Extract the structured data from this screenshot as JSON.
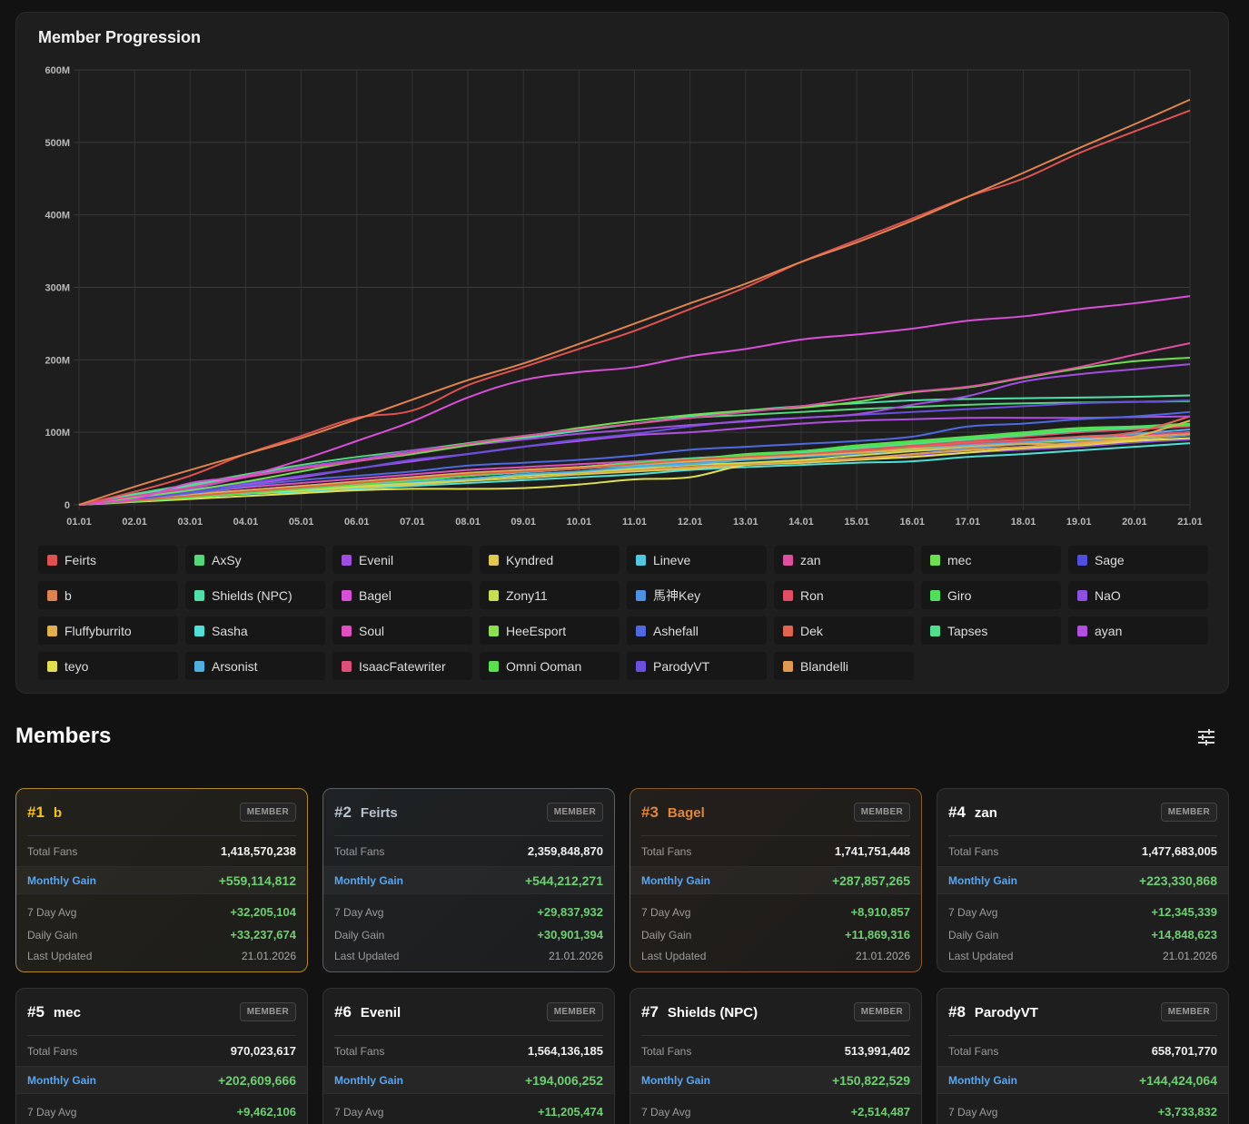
{
  "chart_card": {
    "title": "Member Progression"
  },
  "chart_data": {
    "type": "line",
    "title": "Member Progression",
    "xlabel": "",
    "ylabel": "",
    "x": [
      "01.01",
      "02.01",
      "03.01",
      "04.01",
      "05.01",
      "06.01",
      "07.01",
      "08.01",
      "09.01",
      "10.01",
      "11.01",
      "12.01",
      "13.01",
      "14.01",
      "15.01",
      "16.01",
      "17.01",
      "18.01",
      "19.01",
      "20.01",
      "21.01"
    ],
    "ylim": [
      0,
      600000000
    ],
    "yticks": [
      0,
      100000000,
      200000000,
      300000000,
      400000000,
      500000000,
      600000000
    ],
    "ytick_labels": [
      "0",
      "100M",
      "200M",
      "300M",
      "400M",
      "500M",
      "600M"
    ],
    "grid": true,
    "legend_position": "bottom",
    "series": [
      {
        "name": "Feirts",
        "color": "#e05252",
        "values": [
          0,
          18,
          40,
          70,
          95,
          120,
          130,
          165,
          190,
          215,
          240,
          270,
          300,
          335,
          365,
          395,
          425,
          450,
          485,
          515,
          544
        ]
      },
      {
        "name": "AxSy",
        "color": "#52d97a",
        "values": [
          0,
          15,
          28,
          42,
          55,
          66,
          75,
          85,
          95,
          103,
          112,
          120,
          124,
          128,
          132,
          135,
          138,
          140,
          141,
          142,
          143
        ]
      },
      {
        "name": "Evenil",
        "color": "#a04fe0",
        "values": [
          0,
          10,
          22,
          38,
          52,
          62,
          75,
          82,
          90,
          98,
          104,
          110,
          115,
          120,
          125,
          138,
          150,
          170,
          180,
          187,
          194
        ]
      },
      {
        "name": "Kyndred",
        "color": "#e0c84f",
        "values": [
          0,
          6,
          12,
          16,
          20,
          24,
          28,
          33,
          37,
          42,
          46,
          50,
          55,
          58,
          62,
          70,
          75,
          80,
          83,
          90,
          96
        ]
      },
      {
        "name": "Lineve",
        "color": "#4fc8e0",
        "values": [
          0,
          8,
          15,
          20,
          26,
          30,
          35,
          40,
          45,
          50,
          55,
          60,
          66,
          72,
          76,
          80,
          85,
          88,
          92,
          96,
          100
        ]
      },
      {
        "name": "zan",
        "color": "#e04fa0",
        "values": [
          0,
          12,
          24,
          38,
          50,
          60,
          72,
          84,
          95,
          104,
          112,
          120,
          128,
          136,
          147,
          156,
          163,
          176,
          190,
          207,
          223
        ]
      },
      {
        "name": "mec",
        "color": "#6ee04f",
        "values": [
          0,
          10,
          20,
          32,
          46,
          60,
          70,
          82,
          94,
          106,
          116,
          124,
          130,
          134,
          142,
          155,
          162,
          175,
          188,
          198,
          203
        ]
      },
      {
        "name": "Sage",
        "color": "#4f4fe0",
        "values": [
          0,
          6,
          14,
          20,
          26,
          32,
          38,
          42,
          46,
          52,
          58,
          62,
          68,
          72,
          78,
          82,
          86,
          90,
          94,
          98,
          104
        ]
      },
      {
        "name": "b",
        "color": "#e0834f",
        "values": [
          0,
          25,
          48,
          70,
          92,
          118,
          145,
          172,
          195,
          222,
          250,
          278,
          305,
          335,
          362,
          392,
          425,
          458,
          492,
          525,
          559
        ]
      },
      {
        "name": "Shields (NPC)",
        "color": "#4fe0a8",
        "values": [
          0,
          14,
          26,
          40,
          52,
          62,
          72,
          82,
          92,
          102,
          112,
          122,
          130,
          136,
          140,
          144,
          146,
          147,
          148,
          149,
          151
        ]
      },
      {
        "name": "Bagel",
        "color": "#d84fd8",
        "values": [
          0,
          8,
          30,
          40,
          62,
          88,
          115,
          148,
          172,
          183,
          190,
          205,
          215,
          228,
          235,
          243,
          254,
          260,
          270,
          278,
          288
        ]
      },
      {
        "name": "Zony11",
        "color": "#c8e04f",
        "values": [
          0,
          5,
          10,
          16,
          20,
          25,
          30,
          35,
          40,
          45,
          50,
          55,
          58,
          62,
          68,
          74,
          80,
          86,
          90,
          95,
          100
        ]
      },
      {
        "name": "Fluffyburrito",
        "color": "#e0b04f",
        "values": [
          0,
          7,
          14,
          20,
          26,
          32,
          38,
          44,
          48,
          52,
          56,
          60,
          64,
          68,
          72,
          76,
          80,
          84,
          84,
          94,
          116
        ]
      },
      {
        "name": "Sasha",
        "color": "#4fe0d8",
        "values": [
          0,
          5,
          10,
          15,
          18,
          22,
          26,
          30,
          34,
          38,
          42,
          48,
          52,
          55,
          58,
          60,
          66,
          70,
          75,
          80,
          85
        ]
      },
      {
        "name": "Soul",
        "color": "#e04fc0",
        "values": [
          0,
          8,
          16,
          24,
          30,
          36,
          42,
          48,
          52,
          56,
          60,
          64,
          68,
          72,
          76,
          80,
          84,
          88,
          92,
          96,
          100
        ]
      },
      {
        "name": "HeeEsport",
        "color": "#8fe04f",
        "values": [
          0,
          6,
          12,
          18,
          24,
          30,
          35,
          40,
          45,
          50,
          55,
          60,
          65,
          70,
          74,
          78,
          82,
          86,
          90,
          94,
          98
        ]
      },
      {
        "name": "Ashefall",
        "color": "#4f6ae0",
        "values": [
          0,
          8,
          16,
          26,
          34,
          40,
          46,
          54,
          58,
          62,
          68,
          76,
          80,
          84,
          88,
          94,
          108,
          112,
          118,
          122,
          128
        ]
      },
      {
        "name": "Dek",
        "color": "#e0644f",
        "values": [
          0,
          6,
          12,
          18,
          24,
          30,
          36,
          42,
          46,
          50,
          56,
          62,
          66,
          70,
          74,
          80,
          86,
          90,
          94,
          100,
          122
        ]
      },
      {
        "name": "Tapses",
        "color": "#4fe08f",
        "values": [
          0,
          5,
          10,
          16,
          22,
          28,
          34,
          40,
          46,
          52,
          58,
          64,
          68,
          72,
          78,
          84,
          90,
          96,
          102,
          106,
          110
        ]
      },
      {
        "name": "ayan",
        "color": "#b04fe0",
        "values": [
          0,
          10,
          20,
          28,
          38,
          50,
          60,
          70,
          80,
          88,
          96,
          100,
          106,
          112,
          116,
          118,
          120,
          120,
          120,
          121,
          122
        ]
      },
      {
        "name": "teyo",
        "color": "#e0e04f",
        "values": [
          0,
          4,
          8,
          12,
          16,
          20,
          22,
          22,
          23,
          28,
          35,
          38,
          55,
          58,
          62,
          66,
          72,
          78,
          82,
          88,
          92
        ]
      },
      {
        "name": "Arsonist",
        "color": "#4fb0e0",
        "values": [
          0,
          6,
          12,
          18,
          22,
          28,
          32,
          36,
          42,
          46,
          52,
          56,
          62,
          66,
          72,
          76,
          82,
          86,
          92,
          98,
          104
        ]
      },
      {
        "name": "IsaacFatewriter",
        "color": "#e04f7a",
        "values": [
          0,
          7,
          14,
          20,
          26,
          32,
          38,
          44,
          48,
          52,
          58,
          62,
          68,
          72,
          76,
          80,
          84,
          88,
          92,
          96,
          100
        ]
      },
      {
        "name": "Omni Ooman",
        "color": "#5ae04f",
        "values": [
          0,
          5,
          10,
          16,
          22,
          28,
          34,
          40,
          46,
          50,
          56,
          62,
          70,
          74,
          82,
          88,
          94,
          100,
          106,
          108,
          110
        ]
      },
      {
        "name": "ParodyVT",
        "color": "#6a4fe0",
        "values": [
          0,
          8,
          18,
          30,
          40,
          50,
          62,
          70,
          80,
          90,
          98,
          108,
          116,
          120,
          124,
          128,
          132,
          136,
          140,
          142,
          144
        ]
      },
      {
        "name": "馬神Key",
        "color": "#4f90e0",
        "values": [
          0,
          6,
          12,
          18,
          24,
          30,
          36,
          42,
          46,
          50,
          54,
          58,
          62,
          66,
          70,
          74,
          78,
          84,
          88,
          92,
          96
        ]
      },
      {
        "name": "Ron",
        "color": "#e04f64",
        "values": [
          0,
          6,
          12,
          18,
          24,
          30,
          36,
          42,
          48,
          52,
          56,
          62,
          66,
          70,
          76,
          82,
          88,
          94,
          100,
          104,
          108
        ]
      },
      {
        "name": "Giro",
        "color": "#4fe05a",
        "values": [
          0,
          6,
          12,
          18,
          24,
          30,
          36,
          42,
          48,
          52,
          58,
          62,
          68,
          74,
          80,
          86,
          92,
          98,
          104,
          108,
          112
        ]
      },
      {
        "name": "NaO",
        "color": "#8f4fe0",
        "values": [
          0,
          6,
          12,
          16,
          22,
          26,
          30,
          36,
          40,
          44,
          48,
          52,
          56,
          60,
          64,
          68,
          72,
          76,
          80,
          86,
          90
        ]
      },
      {
        "name": "Blandelli",
        "color": "#e09a4f",
        "values": [
          0,
          6,
          12,
          18,
          22,
          26,
          32,
          36,
          40,
          44,
          48,
          52,
          56,
          60,
          64,
          70,
          76,
          80,
          86,
          92,
          98
        ]
      }
    ],
    "value_units": "millions"
  },
  "legend": [
    {
      "name": "Feirts",
      "color": "#e05252"
    },
    {
      "name": "AxSy",
      "color": "#52d97a"
    },
    {
      "name": "Evenil",
      "color": "#a04fe0"
    },
    {
      "name": "Kyndred",
      "color": "#e0c84f"
    },
    {
      "name": "Lineve",
      "color": "#4fc8e0"
    },
    {
      "name": "zan",
      "color": "#e04fa0"
    },
    {
      "name": "mec",
      "color": "#6ee04f"
    },
    {
      "name": "Sage",
      "color": "#4f4fe0"
    },
    {
      "name": "b",
      "color": "#e0834f"
    },
    {
      "name": "Shields  (NPC)",
      "color": "#4fe0a8"
    },
    {
      "name": "Bagel",
      "color": "#d84fd8"
    },
    {
      "name": "Zony11",
      "color": "#c8e04f"
    },
    {
      "name": "馬神Key",
      "color": "#4f90e0"
    },
    {
      "name": "Ron",
      "color": "#e04f64"
    },
    {
      "name": "Giro",
      "color": "#4fe05a"
    },
    {
      "name": "NaO",
      "color": "#8f4fe0"
    },
    {
      "name": "Fluffyburrito",
      "color": "#e0b04f"
    },
    {
      "name": "Sasha",
      "color": "#4fe0d8"
    },
    {
      "name": "Soul",
      "color": "#e04fc0"
    },
    {
      "name": "HeeEsport",
      "color": "#8fe04f"
    },
    {
      "name": "Ashefall",
      "color": "#4f6ae0"
    },
    {
      "name": "Dek",
      "color": "#e0644f"
    },
    {
      "name": "Tapses",
      "color": "#4fe08f"
    },
    {
      "name": "ayan",
      "color": "#b04fe0"
    },
    {
      "name": "teyo",
      "color": "#e0e04f"
    },
    {
      "name": "Arsonist",
      "color": "#4fb0e0"
    },
    {
      "name": "IsaacFatewriter",
      "color": "#e04f7a"
    },
    {
      "name": "Omni Ooman",
      "color": "#5ae04f"
    },
    {
      "name": "ParodyVT",
      "color": "#6a4fe0"
    },
    {
      "name": "Blandelli",
      "color": "#e09a4f"
    }
  ],
  "members_section": {
    "title": "Members",
    "filter_icon": "sliders-icon"
  },
  "labels": {
    "badge": "MEMBER",
    "total_fans": "Total Fans",
    "monthly_gain": "Monthly Gain",
    "seven_day_avg": "7 Day Avg",
    "daily_gain": "Daily Gain",
    "last_updated": "Last Updated"
  },
  "members": [
    {
      "rank": "#1",
      "name": "b",
      "total_fans": "1,418,570,238",
      "monthly_gain": "+559,114,812",
      "seven_day_avg": "+32,205,104",
      "daily_gain": "+33,237,674",
      "last_updated": "21.01.2026"
    },
    {
      "rank": "#2",
      "name": "Feirts",
      "total_fans": "2,359,848,870",
      "monthly_gain": "+544,212,271",
      "seven_day_avg": "+29,837,932",
      "daily_gain": "+30,901,394",
      "last_updated": "21.01.2026"
    },
    {
      "rank": "#3",
      "name": "Bagel",
      "total_fans": "1,741,751,448",
      "monthly_gain": "+287,857,265",
      "seven_day_avg": "+8,910,857",
      "daily_gain": "+11,869,316",
      "last_updated": "21.01.2026"
    },
    {
      "rank": "#4",
      "name": "zan",
      "total_fans": "1,477,683,005",
      "monthly_gain": "+223,330,868",
      "seven_day_avg": "+12,345,339",
      "daily_gain": "+14,848,623",
      "last_updated": "21.01.2026"
    },
    {
      "rank": "#5",
      "name": "mec",
      "total_fans": "970,023,617",
      "monthly_gain": "+202,609,666",
      "seven_day_avg": "+9,462,106"
    },
    {
      "rank": "#6",
      "name": "Evenil",
      "total_fans": "1,564,136,185",
      "monthly_gain": "+194,006,252",
      "seven_day_avg": "+11,205,474"
    },
    {
      "rank": "#7",
      "name": "Shields  (NPC)",
      "total_fans": "513,991,402",
      "monthly_gain": "+150,822,529",
      "seven_day_avg": "+2,514,487"
    },
    {
      "rank": "#8",
      "name": "ParodyVT",
      "total_fans": "658,701,770",
      "monthly_gain": "+144,424,064",
      "seven_day_avg": "+3,733,832"
    }
  ]
}
